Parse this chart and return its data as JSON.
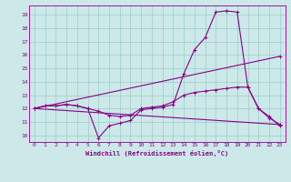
{
  "xlabel": "Windchill (Refroidissement éolien,°C)",
  "ylabel": "",
  "bg_color": "#cce8e8",
  "grid_color": "#99cccc",
  "line_color": "#880088",
  "xlim": [
    -0.5,
    23.5
  ],
  "ylim": [
    9.5,
    19.7
  ],
  "xticks": [
    0,
    1,
    2,
    3,
    4,
    5,
    6,
    7,
    8,
    9,
    10,
    11,
    12,
    13,
    14,
    15,
    16,
    17,
    18,
    19,
    20,
    21,
    22,
    23
  ],
  "yticks": [
    10,
    11,
    12,
    13,
    14,
    15,
    16,
    17,
    18,
    19
  ],
  "line1_x": [
    0,
    1,
    2,
    3,
    4,
    5,
    6,
    7,
    8,
    9,
    10,
    11,
    12,
    13,
    14,
    15,
    16,
    17,
    18,
    19,
    20,
    21,
    22,
    23
  ],
  "line1_y": [
    12.0,
    12.2,
    12.2,
    12.3,
    12.2,
    12.0,
    9.8,
    10.7,
    10.9,
    11.1,
    11.9,
    12.0,
    12.1,
    12.3,
    14.6,
    16.4,
    17.3,
    19.2,
    19.3,
    19.2,
    13.6,
    12.0,
    11.4,
    10.7
  ],
  "line2_x": [
    0,
    1,
    2,
    3,
    4,
    5,
    6,
    7,
    8,
    9,
    10,
    11,
    12,
    13,
    14,
    15,
    16,
    17,
    18,
    19,
    20,
    21,
    22,
    23
  ],
  "line2_y": [
    12.0,
    12.2,
    12.2,
    12.3,
    12.2,
    12.0,
    11.8,
    11.5,
    11.4,
    11.5,
    12.0,
    12.1,
    12.2,
    12.5,
    13.0,
    13.2,
    13.3,
    13.4,
    13.5,
    13.6,
    13.6,
    12.0,
    11.3,
    10.8
  ],
  "line3_x": [
    0,
    23
  ],
  "line3_y": [
    12.0,
    15.9
  ],
  "line4_x": [
    0,
    23
  ],
  "line4_y": [
    12.0,
    10.8
  ],
  "marker": "+",
  "tick_fontsize": 4.5,
  "xlabel_fontsize": 5.0,
  "lw": 0.8,
  "ms": 3.5
}
